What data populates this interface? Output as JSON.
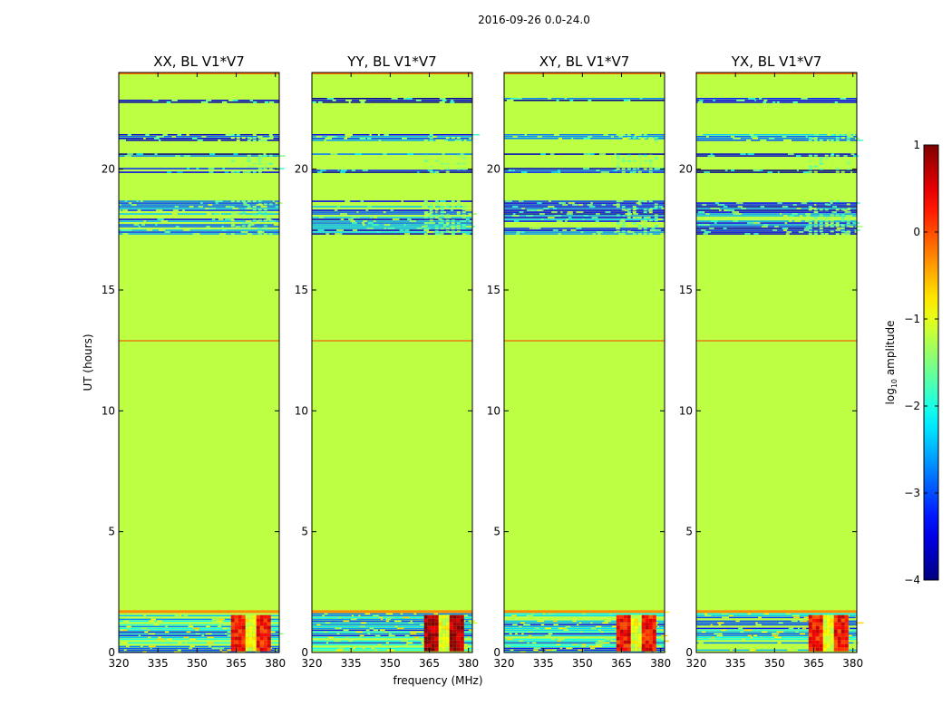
{
  "figure": {
    "suptitle": "2016-09-26 0.0-24.0"
  },
  "chart_data": {
    "type": "heatmap",
    "title": "2016-09-26 0.0-24.0",
    "xlabel": "frequency (MHz)",
    "ylabel": "UT (hours)",
    "xlim": [
      320,
      381.5
    ],
    "ylim": [
      0,
      24
    ],
    "x_ticks": [
      "320",
      "335",
      "350",
      "365",
      "380"
    ],
    "x_tick_values": [
      320,
      335,
      350,
      365,
      380
    ],
    "y_ticks": [
      "0",
      "5",
      "10",
      "15",
      "20"
    ],
    "y_tick_values": [
      0,
      5,
      10,
      15,
      20
    ],
    "panels": [
      {
        "id": "xx",
        "title": "XX, BL V1*V7"
      },
      {
        "id": "yy",
        "title": "YY, BL V1*V7"
      },
      {
        "id": "xy",
        "title": "XY, BL V1*V7"
      },
      {
        "id": "yx",
        "title": "YX, BL V1*V7"
      }
    ],
    "colorbar": {
      "label": "log10 amplitude",
      "label_main": "log",
      "label_sub": "10",
      "label_rest": " amplitude",
      "colormap": "jet",
      "range": [
        -4,
        1
      ],
      "tick_values": [
        1,
        0,
        -1,
        -2,
        -3,
        -4
      ],
      "tick_labels": [
        "1",
        "0",
        "−1",
        "−2",
        "−3",
        "−4"
      ]
    },
    "background_level": -1.2,
    "features": {
      "narrowband_bands_hours": [
        {
          "from": 22.75,
          "to": 22.95,
          "level": -3.3
        },
        {
          "from": 21.2,
          "to": 21.45,
          "level": -3.0
        },
        {
          "from": 20.55,
          "to": 20.65,
          "level": -3.3
        },
        {
          "from": 19.9,
          "to": 20.05,
          "level": -3.5
        },
        {
          "from": 17.3,
          "to": 18.7,
          "level": -3.0
        },
        {
          "from": 0.0,
          "to": 1.7,
          "level": -2.6
        }
      ],
      "rfi_line_hours": 12.9,
      "rfi_line_level": 0.1,
      "top_edge_level": -0.2,
      "bursty_channels_MHz": [
        363,
        378
      ],
      "low_hours_bright_levels": {
        "xx": 0.3,
        "yy": 0.8,
        "xy": 0.3,
        "yx": 0.3
      }
    }
  }
}
